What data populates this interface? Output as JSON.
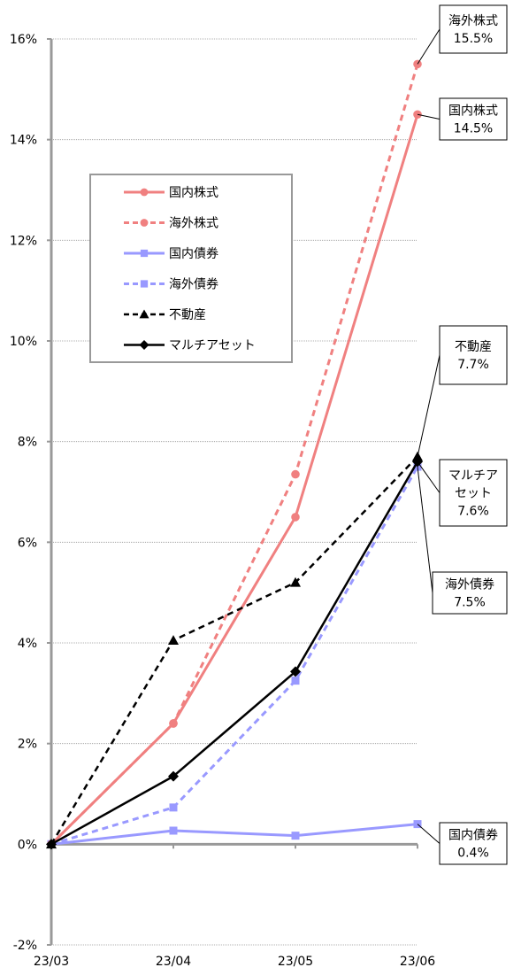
{
  "chart_data": {
    "type": "line",
    "x": [
      "23/03",
      "23/04",
      "23/05",
      "23/06"
    ],
    "ylim": [
      -0.02,
      0.16
    ],
    "yticks": [
      -0.02,
      0,
      0.02,
      0.04,
      0.06,
      0.08,
      0.1,
      0.12,
      0.14,
      0.16
    ],
    "ytick_labels": [
      "-2%",
      "0%",
      "2%",
      "4%",
      "6%",
      "8%",
      "10%",
      "12%",
      "14%",
      "16%"
    ],
    "grid": true,
    "legend_position": "upper-left",
    "series": [
      {
        "name": "国内株式",
        "values": [
          0,
          0.024,
          0.065,
          0.145
        ],
        "color": "#F08080",
        "dash": "solid",
        "marker": "circle"
      },
      {
        "name": "海外株式",
        "values": [
          0,
          0.024,
          0.0735,
          0.155
        ],
        "color": "#F08080",
        "dash": "dashed",
        "marker": "circle"
      },
      {
        "name": "国内債券",
        "values": [
          0,
          0.0027,
          0.0017,
          0.004
        ],
        "color": "#9999FF",
        "dash": "solid",
        "marker": "square"
      },
      {
        "name": "海外債券",
        "values": [
          0,
          0.0073,
          0.0325,
          0.075
        ],
        "color": "#9999FF",
        "dash": "dashed",
        "marker": "square"
      },
      {
        "name": "不動産",
        "values": [
          0,
          0.0405,
          0.052,
          0.077
        ],
        "color": "#000000",
        "dash": "dashed",
        "marker": "triangle"
      },
      {
        "name": "マルチアセット",
        "values": [
          0,
          0.0135,
          0.0343,
          0.076
        ],
        "color": "#000000",
        "dash": "solid",
        "marker": "diamond"
      }
    ],
    "callouts": [
      {
        "lines": [
          "海外株式",
          "15.5%"
        ],
        "series": 1
      },
      {
        "lines": [
          "国内株式",
          "14.5%"
        ],
        "series": 0
      },
      {
        "lines": [
          "不動産",
          "7.7%"
        ],
        "series": 4
      },
      {
        "lines": [
          "マルチア",
          "セット",
          "7.6%"
        ],
        "series": 5
      },
      {
        "lines": [
          "海外債券",
          "7.5%"
        ],
        "series": 3
      },
      {
        "lines": [
          "国内債券",
          "0.4%"
        ],
        "series": 2
      }
    ]
  }
}
